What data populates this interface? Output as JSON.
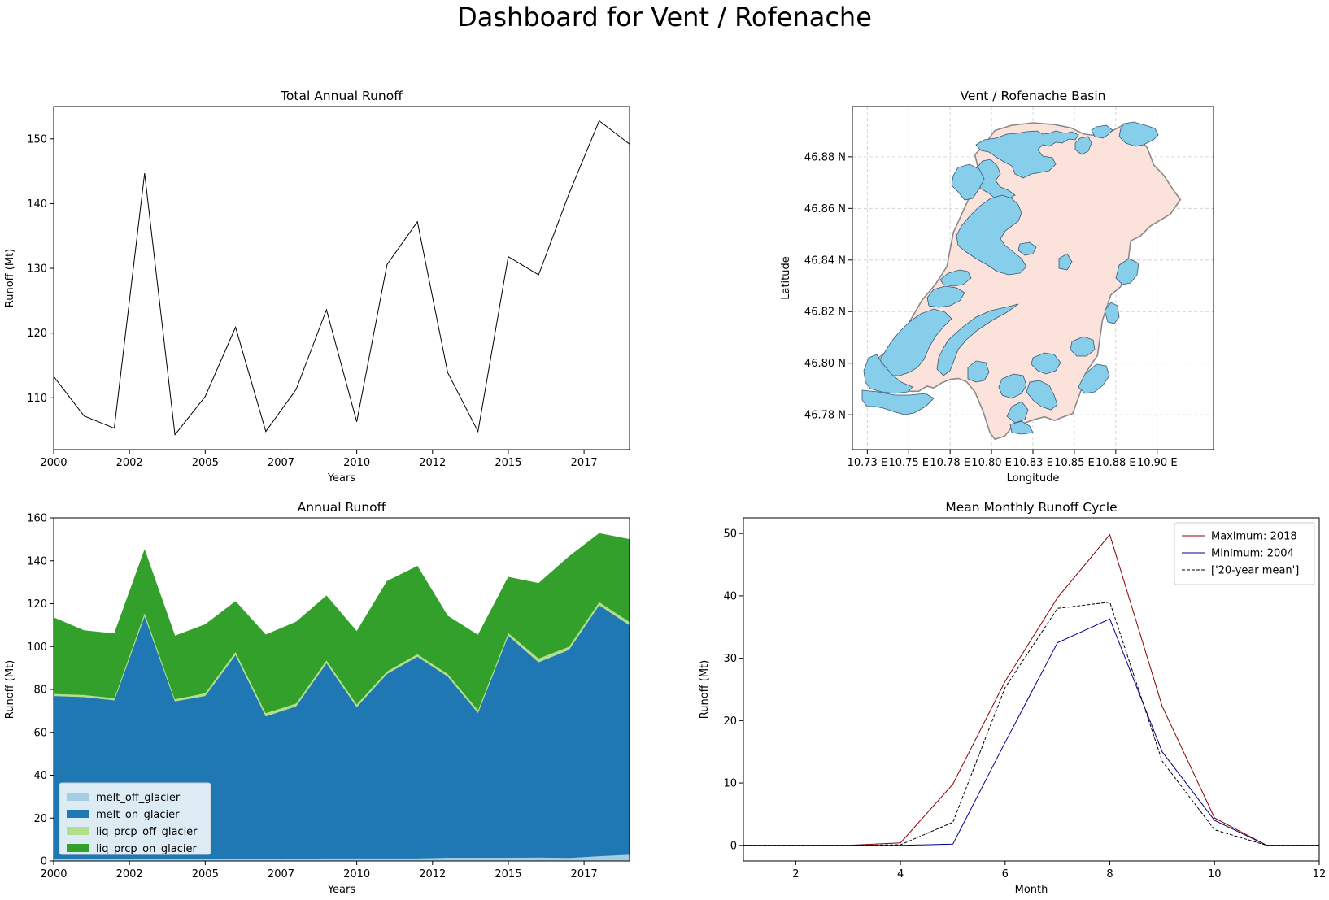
{
  "suptitle": "Dashboard for Vent / Rofenache",
  "colors": {
    "total_line": "#000000",
    "glacier": "#87ceeb",
    "basin_fill": "#fbe3dc",
    "basin_edge": "#8a8a8a",
    "max_line": "#8b0000",
    "min_line": "#00008b",
    "mean_line": "#000000"
  },
  "chart_data": [
    {
      "type": "line",
      "title": "Total Annual Runoff",
      "xlabel": "Years",
      "ylabel": "Runoff (Mt)",
      "xlim": [
        2000,
        2019
      ],
      "ylim": [
        102,
        155
      ],
      "xticks": [
        2000,
        2002.5,
        2005,
        2007.5,
        2010,
        2012.5,
        2015,
        2017.5
      ],
      "xtick_labels": [
        "2000",
        "2002",
        "2005",
        "2007",
        "2010",
        "2012",
        "2015",
        "2017"
      ],
      "yticks": [
        110,
        120,
        130,
        140,
        150
      ],
      "yticklabels": [
        "110",
        "120",
        "130",
        "140",
        "150"
      ],
      "x": [
        2000,
        2001,
        2002,
        2003,
        2004,
        2005,
        2006,
        2007,
        2008,
        2009,
        2010,
        2011,
        2012,
        2013,
        2014,
        2015,
        2016,
        2017,
        2018,
        2019
      ],
      "series": [
        {
          "values": [
            113.3,
            107.2,
            105.3,
            144.7,
            104.3,
            110.2,
            120.9,
            104.8,
            111.3,
            123.6,
            106.3,
            130.6,
            137.2,
            113.9,
            104.8,
            131.8,
            129.0,
            141.5,
            152.8,
            149.2
          ]
        }
      ]
    },
    {
      "type": "map",
      "title": "Vent / Rofenache Basin",
      "xlabel": "Longitude",
      "ylabel": "Latitude",
      "xlim": [
        10.716,
        10.934
      ],
      "ylim": [
        46.7665,
        46.8995
      ],
      "xticks": [
        10.725,
        10.75,
        10.775,
        10.8,
        10.825,
        10.85,
        10.875,
        10.9
      ],
      "xtick_labels": [
        "10.73 E",
        "10.75 E",
        "10.78 E",
        "10.80 E",
        "10.83 E",
        "10.85 E",
        "10.88 E",
        "10.90 E"
      ],
      "yticks": [
        46.78,
        46.8,
        46.82,
        46.84,
        46.86,
        46.88
      ],
      "yticklabels": [
        "46.78 N",
        "46.80 N",
        "46.82 N",
        "46.84 N",
        "46.86 N",
        "46.88 N"
      ],
      "grid": true,
      "basin_outline": [
        [
          10.727,
          46.7983
        ],
        [
          10.73,
          46.7966
        ],
        [
          10.734,
          46.7957
        ],
        [
          10.738,
          46.7944
        ],
        [
          10.744,
          46.7918
        ],
        [
          10.751,
          46.7891
        ],
        [
          10.756,
          46.7891
        ],
        [
          10.761,
          46.7911
        ],
        [
          10.765,
          46.7904
        ],
        [
          10.77,
          46.7924
        ],
        [
          10.775,
          46.7937
        ],
        [
          10.78,
          46.7941
        ],
        [
          10.785,
          46.7928
        ],
        [
          10.79,
          46.7888
        ],
        [
          10.795,
          46.7812
        ],
        [
          10.799,
          46.7732
        ],
        [
          10.802,
          46.7705
        ],
        [
          10.808,
          46.7718
        ],
        [
          10.814,
          46.7765
        ],
        [
          10.82,
          46.7768
        ],
        [
          10.826,
          46.7782
        ],
        [
          10.832,
          46.7792
        ],
        [
          10.838,
          46.7778
        ],
        [
          10.843,
          46.7791
        ],
        [
          10.849,
          46.7805
        ],
        [
          10.854,
          46.7894
        ],
        [
          10.857,
          46.7964
        ],
        [
          10.864,
          46.8031
        ],
        [
          10.867,
          46.8167
        ],
        [
          10.872,
          46.8264
        ],
        [
          10.878,
          46.8297
        ],
        [
          10.882,
          46.8371
        ],
        [
          10.884,
          46.8474
        ],
        [
          10.89,
          46.8494
        ],
        [
          10.896,
          46.8532
        ],
        [
          10.908,
          46.8578
        ],
        [
          10.914,
          46.8634
        ],
        [
          10.91,
          46.8669
        ],
        [
          10.904,
          46.8728
        ],
        [
          10.898,
          46.8768
        ],
        [
          10.894,
          46.8835
        ],
        [
          10.887,
          46.8888
        ],
        [
          10.88,
          46.8925
        ],
        [
          10.872,
          46.8898
        ],
        [
          10.865,
          46.8882
        ],
        [
          10.856,
          46.8888
        ],
        [
          10.848,
          46.8912
        ],
        [
          10.838,
          46.8925
        ],
        [
          10.825,
          46.8932
        ],
        [
          10.812,
          46.8922
        ],
        [
          10.802,
          46.8902
        ],
        [
          10.797,
          46.8858
        ],
        [
          10.79,
          46.8808
        ],
        [
          10.793,
          46.8725
        ],
        [
          10.786,
          46.8634
        ],
        [
          10.777,
          46.8507
        ],
        [
          10.773,
          46.8374
        ],
        [
          10.766,
          46.8304
        ],
        [
          10.758,
          46.8244
        ],
        [
          10.749,
          46.8144
        ],
        [
          10.739,
          46.8057
        ],
        [
          10.731,
          46.8017
        ]
      ]
    },
    {
      "type": "area",
      "title": "Annual Runoff",
      "xlabel": "Years",
      "ylabel": "Runoff (Mt)",
      "xlim": [
        2000,
        2019
      ],
      "ylim": [
        0,
        160
      ],
      "xticks": [
        2000,
        2002.5,
        2005,
        2007.5,
        2010,
        2012.5,
        2015,
        2017.5
      ],
      "xtick_labels": [
        "2000",
        "2002",
        "2005",
        "2007",
        "2010",
        "2012",
        "2015",
        "2017"
      ],
      "yticks": [
        0,
        20,
        40,
        60,
        80,
        100,
        120,
        140,
        160
      ],
      "yticklabels": [
        "0",
        "20",
        "40",
        "60",
        "80",
        "100",
        "120",
        "140",
        "160"
      ],
      "legend": "lower-left",
      "x": [
        2000,
        2001,
        2002,
        2003,
        2004,
        2005,
        2006,
        2007,
        2008,
        2009,
        2010,
        2011,
        2012,
        2013,
        2014,
        2015,
        2016,
        2017,
        2018,
        2019
      ],
      "series": [
        {
          "name": "melt_off_glacier",
          "color": "#a6cee3",
          "values": [
            1.0,
            1.0,
            1.0,
            1.2,
            1.0,
            1.0,
            1.1,
            1.0,
            1.2,
            1.3,
            1.3,
            1.3,
            1.3,
            1.6,
            1.6,
            1.6,
            1.7,
            1.5,
            2.3,
            3.0
          ]
        },
        {
          "name": "melt_on_glacier",
          "color": "#1f78b4",
          "values": [
            76.0,
            75.5,
            74.0,
            113.0,
            73.5,
            76.0,
            95.0,
            66.5,
            71.0,
            91.0,
            70.5,
            86.0,
            94.0,
            84.5,
            67.5,
            103.5,
            91.0,
            97.0,
            117.0,
            107.0
          ]
        },
        {
          "name": "liq_prcp_off_glacier",
          "color": "#b2df8a",
          "values": [
            1.0,
            1.0,
            1.0,
            1.5,
            1.0,
            1.3,
            1.5,
            1.5,
            1.3,
            1.4,
            1.3,
            1.2,
            1.2,
            1.2,
            1.3,
            1.3,
            1.8,
            1.5,
            1.5,
            1.5
          ]
        },
        {
          "name": "liq_prcp_on_glacier",
          "color": "#33a02c",
          "values": [
            35.5,
            30.0,
            30.0,
            29.5,
            29.5,
            32.0,
            23.5,
            36.5,
            38.0,
            30.0,
            34.0,
            42.0,
            41.0,
            27.0,
            35.0,
            26.0,
            35.0,
            42.0,
            32.0,
            38.5
          ]
        }
      ]
    },
    {
      "type": "line",
      "title": "Mean Monthly Runoff Cycle",
      "xlabel": "Month",
      "ylabel": "Runoff (Mt)",
      "xlim": [
        1,
        12
      ],
      "ylim": [
        -2.5,
        52.5
      ],
      "xticks": [
        2,
        4,
        6,
        8,
        10,
        12
      ],
      "xtick_labels": [
        "2",
        "4",
        "6",
        "8",
        "10",
        "12"
      ],
      "yticks": [
        0,
        10,
        20,
        30,
        40,
        50
      ],
      "yticklabels": [
        "0",
        "10",
        "20",
        "30",
        "40",
        "50"
      ],
      "legend": "top-right",
      "x": [
        1,
        2,
        3,
        4,
        5,
        6,
        7,
        8,
        9,
        10,
        11,
        12
      ],
      "series": [
        {
          "name": "Maximum: 2018",
          "color": "#8b0000",
          "dash": "none",
          "values": [
            0,
            0,
            0,
            0.4,
            9.8,
            26.3,
            39.7,
            49.8,
            22.3,
            4.4,
            0,
            0
          ]
        },
        {
          "name": "Minimum: 2004",
          "color": "#00008b",
          "dash": "none",
          "values": [
            0,
            0,
            0,
            0,
            0.2,
            16.5,
            32.5,
            36.3,
            15.0,
            4.0,
            0,
            0
          ]
        },
        {
          "name": "['20-year mean']",
          "color": "#000000",
          "dash": "4,2",
          "values": [
            0,
            0,
            0,
            0.1,
            3.7,
            25.3,
            38.0,
            39.0,
            13.5,
            2.5,
            0,
            0
          ]
        }
      ]
    }
  ]
}
